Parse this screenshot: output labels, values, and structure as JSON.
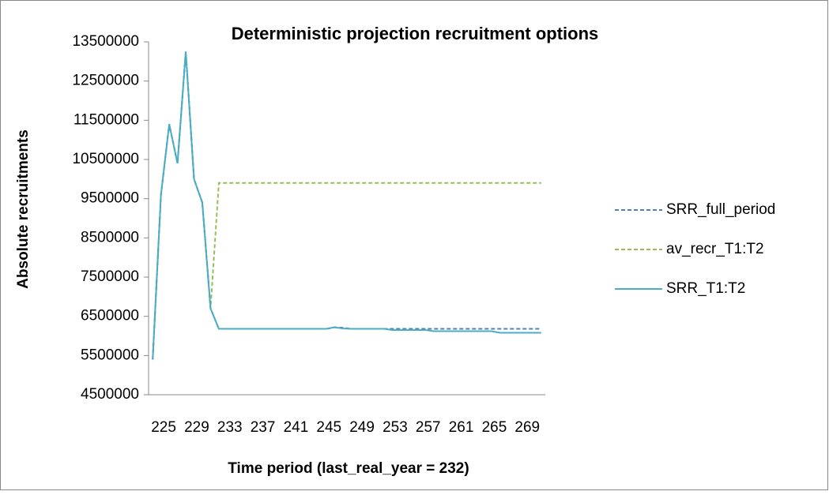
{
  "chart_data": {
    "type": "line",
    "title": "Deterministic projection recruitment options",
    "xlabel": "Time period (last_real_year = 232)",
    "ylabel": "Absolute recruitments",
    "categories": [
      "225",
      null,
      null,
      null,
      "229",
      null,
      null,
      null,
      "233",
      null,
      null,
      null,
      "237",
      null,
      null,
      null,
      "241",
      null,
      null,
      null,
      "245",
      null,
      null,
      null,
      "249",
      null,
      null,
      null,
      "253",
      null,
      null,
      null,
      "257",
      null,
      null,
      null,
      "261",
      null,
      null,
      null,
      "265",
      null,
      null,
      null,
      "269",
      null,
      null,
      null
    ],
    "series": [
      {
        "name": "SRR_full_period",
        "color": "#4f81bd",
        "dashed": true,
        "values": [
          5400000,
          9600000,
          11400000,
          10400000,
          13250000,
          10000000,
          9400000,
          6700000,
          6180000,
          6180000,
          6180000,
          6180000,
          6180000,
          6180000,
          6180000,
          6180000,
          6180000,
          6180000,
          6180000,
          6180000,
          6180000,
          6180000,
          6220000,
          6210000,
          6180000,
          6180000,
          6180000,
          6180000,
          6180000,
          6180000,
          6180000,
          6180000,
          6180000,
          6180000,
          6180000,
          6180000,
          6180000,
          6180000,
          6180000,
          6180000,
          6180000,
          6180000,
          6180000,
          6180000,
          6180000,
          6180000,
          6180000,
          6180000
        ]
      },
      {
        "name": "av_recr_T1:T2",
        "color": "#9bbb59",
        "dashed": true,
        "values": [
          5400000,
          9600000,
          11400000,
          10400000,
          13250000,
          10000000,
          9400000,
          6700000,
          9900000,
          9900000,
          9900000,
          9900000,
          9900000,
          9900000,
          9900000,
          9900000,
          9900000,
          9900000,
          9900000,
          9900000,
          9900000,
          9900000,
          9900000,
          9900000,
          9900000,
          9900000,
          9900000,
          9900000,
          9900000,
          9900000,
          9900000,
          9900000,
          9900000,
          9900000,
          9900000,
          9900000,
          9900000,
          9900000,
          9900000,
          9900000,
          9900000,
          9900000,
          9900000,
          9900000,
          9900000,
          9900000,
          9900000,
          9900000
        ]
      },
      {
        "name": "SRR_T1:T2",
        "color": "#4bacc6",
        "dashed": false,
        "values": [
          5400000,
          9600000,
          11400000,
          10400000,
          13250000,
          10000000,
          9400000,
          6700000,
          6180000,
          6180000,
          6180000,
          6180000,
          6180000,
          6180000,
          6180000,
          6180000,
          6180000,
          6180000,
          6180000,
          6180000,
          6180000,
          6180000,
          6220000,
          6190000,
          6180000,
          6180000,
          6180000,
          6180000,
          6180000,
          6150000,
          6150000,
          6150000,
          6150000,
          6150000,
          6120000,
          6120000,
          6120000,
          6120000,
          6120000,
          6120000,
          6120000,
          6120000,
          6080000,
          6080000,
          6080000,
          6080000,
          6080000,
          6080000
        ]
      }
    ],
    "ylim": [
      4500000,
      13500000
    ],
    "yticks": [
      4500000,
      5500000,
      6500000,
      7500000,
      8500000,
      9500000,
      10500000,
      11500000,
      12500000,
      13500000
    ],
    "grid": false,
    "legend": "right"
  }
}
